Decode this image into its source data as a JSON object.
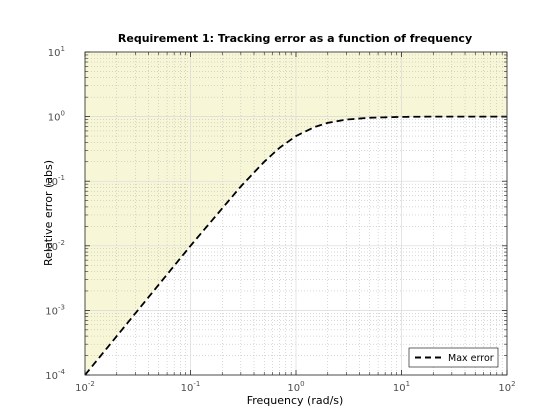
{
  "chart_data": {
    "type": "line",
    "title": "Requirement 1: Tracking error as a function of frequency",
    "xlabel": "Frequency (rad/s)",
    "ylabel": "Relative error (abs)",
    "xscale": "log",
    "yscale": "log",
    "xlim": [
      0.01,
      100
    ],
    "ylim": [
      0.0001,
      10
    ],
    "x_ticks": [
      {
        "base": "10",
        "exp": "-2"
      },
      {
        "base": "10",
        "exp": "-1"
      },
      {
        "base": "10",
        "exp": "0"
      },
      {
        "base": "10",
        "exp": "1"
      },
      {
        "base": "10",
        "exp": "2"
      }
    ],
    "y_ticks": [
      {
        "base": "10",
        "exp": "-4"
      },
      {
        "base": "10",
        "exp": "-3"
      },
      {
        "base": "10",
        "exp": "-2"
      },
      {
        "base": "10",
        "exp": "-1"
      },
      {
        "base": "10",
        "exp": "0"
      },
      {
        "base": "10",
        "exp": "1"
      }
    ],
    "grid": true,
    "minor_grid": true,
    "legend_position": "bottom-right",
    "shaded_region": {
      "description": "area above the Max error curve",
      "color": "#f7f7d7"
    },
    "series": [
      {
        "name": "Max error",
        "style": "dashed",
        "color": "#000000",
        "x": [
          0.01,
          0.02,
          0.05,
          0.1,
          0.2,
          0.3,
          0.5,
          0.7,
          1.0,
          1.5,
          2.0,
          3.0,
          5.0,
          10.0,
          20.0,
          50.0,
          100.0
        ],
        "y": [
          0.0001,
          0.0004,
          0.0025,
          0.01,
          0.038,
          0.083,
          0.2,
          0.33,
          0.5,
          0.69,
          0.8,
          0.9,
          0.96,
          0.99,
          1.0,
          1.0,
          1.0
        ]
      }
    ]
  }
}
